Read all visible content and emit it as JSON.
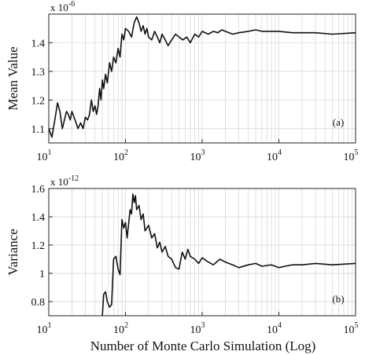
{
  "chart_data": [
    {
      "type": "line",
      "panel_label": "(a)",
      "ylabel": "Mean Value",
      "y_multiplier": {
        "base": "x 10",
        "exponent": "-6"
      },
      "x_scale": "log",
      "xlim": [
        10,
        100000
      ],
      "ylim": [
        1.05,
        1.5
      ],
      "x_ticks": [
        {
          "value": 10,
          "base": "10",
          "exp": "1"
        },
        {
          "value": 100,
          "base": "10",
          "exp": "2"
        },
        {
          "value": 1000,
          "base": "10",
          "exp": "3"
        },
        {
          "value": 10000,
          "base": "10",
          "exp": "4"
        },
        {
          "value": 100000,
          "base": "10",
          "exp": "5"
        }
      ],
      "y_ticks": [
        {
          "value": 1.1,
          "label": "1.1"
        },
        {
          "value": 1.2,
          "label": "1.2"
        },
        {
          "value": 1.3,
          "label": "1.3"
        },
        {
          "value": 1.4,
          "label": "1.4"
        }
      ],
      "grid": true,
      "series": [
        {
          "x": [
            10,
            11,
            12,
            13,
            14,
            15,
            16,
            17,
            18,
            19,
            20,
            22,
            24,
            26,
            28,
            30,
            32,
            34,
            36,
            38,
            40,
            42,
            44,
            46,
            48,
            50,
            52,
            55,
            58,
            62,
            66,
            70,
            75,
            80,
            85,
            90,
            95,
            100,
            110,
            120,
            130,
            140,
            150,
            160,
            170,
            180,
            190,
            200,
            220,
            240,
            260,
            280,
            300,
            330,
            360,
            400,
            450,
            500,
            560,
            630,
            700,
            800,
            900,
            1000,
            1200,
            1400,
            1600,
            1800,
            2000,
            2500,
            3000,
            4000,
            5000,
            6000,
            8000,
            10000,
            15000,
            20000,
            30000,
            50000,
            100000
          ],
          "y": [
            1.1,
            1.07,
            1.13,
            1.19,
            1.16,
            1.1,
            1.13,
            1.16,
            1.15,
            1.13,
            1.16,
            1.13,
            1.1,
            1.12,
            1.1,
            1.14,
            1.13,
            1.15,
            1.2,
            1.16,
            1.18,
            1.15,
            1.18,
            1.24,
            1.2,
            1.27,
            1.24,
            1.29,
            1.26,
            1.33,
            1.3,
            1.35,
            1.33,
            1.38,
            1.35,
            1.43,
            1.41,
            1.45,
            1.44,
            1.42,
            1.47,
            1.49,
            1.47,
            1.44,
            1.46,
            1.43,
            1.45,
            1.42,
            1.41,
            1.44,
            1.42,
            1.4,
            1.43,
            1.41,
            1.39,
            1.41,
            1.43,
            1.42,
            1.41,
            1.42,
            1.4,
            1.43,
            1.42,
            1.44,
            1.43,
            1.44,
            1.435,
            1.445,
            1.44,
            1.43,
            1.435,
            1.44,
            1.445,
            1.44,
            1.44,
            1.44,
            1.435,
            1.435,
            1.435,
            1.43,
            1.435
          ]
        }
      ]
    },
    {
      "type": "line",
      "panel_label": "(b)",
      "ylabel": "Variance",
      "xlabel": "Number of Monte Carlo Simulation (Log)",
      "y_multiplier": {
        "base": "x 10",
        "exponent": "-12"
      },
      "x_scale": "log",
      "xlim": [
        10,
        100000
      ],
      "ylim": [
        0.7,
        1.6
      ],
      "x_ticks": [
        {
          "value": 10,
          "base": "10",
          "exp": "1"
        },
        {
          "value": 100,
          "base": "10",
          "exp": "2"
        },
        {
          "value": 1000,
          "base": "10",
          "exp": "3"
        },
        {
          "value": 10000,
          "base": "10",
          "exp": "4"
        },
        {
          "value": 100000,
          "base": "10",
          "exp": "5"
        }
      ],
      "y_ticks": [
        {
          "value": 0.8,
          "label": "0.8"
        },
        {
          "value": 1.0,
          "label": "1"
        },
        {
          "value": 1.2,
          "label": "1.2"
        },
        {
          "value": 1.4,
          "label": "1.4"
        },
        {
          "value": 1.6,
          "label": "1.6"
        }
      ],
      "grid": true,
      "series": [
        {
          "x": [
            50,
            52,
            55,
            58,
            62,
            66,
            70,
            75,
            80,
            85,
            90,
            95,
            100,
            105,
            110,
            115,
            120,
            125,
            130,
            135,
            140,
            150,
            160,
            170,
            180,
            200,
            220,
            240,
            260,
            280,
            300,
            330,
            360,
            400,
            450,
            500,
            550,
            600,
            650,
            700,
            800,
            900,
            1000,
            1200,
            1400,
            1700,
            2000,
            2500,
            3000,
            4000,
            5000,
            6000,
            8000,
            10000,
            12000,
            15000,
            20000,
            30000,
            50000,
            100000
          ],
          "y": [
            0.7,
            0.85,
            0.87,
            0.8,
            0.76,
            0.78,
            1.1,
            1.12,
            1.03,
            0.99,
            1.38,
            1.32,
            1.36,
            1.25,
            1.35,
            1.45,
            1.42,
            1.56,
            1.5,
            1.55,
            1.45,
            1.48,
            1.38,
            1.42,
            1.3,
            1.34,
            1.25,
            1.28,
            1.18,
            1.22,
            1.15,
            1.19,
            1.12,
            1.1,
            1.04,
            1.03,
            1.15,
            1.1,
            1.17,
            1.12,
            1.1,
            1.07,
            1.11,
            1.08,
            1.06,
            1.1,
            1.08,
            1.06,
            1.04,
            1.06,
            1.07,
            1.05,
            1.06,
            1.04,
            1.05,
            1.06,
            1.06,
            1.07,
            1.06,
            1.07
          ]
        }
      ]
    }
  ]
}
